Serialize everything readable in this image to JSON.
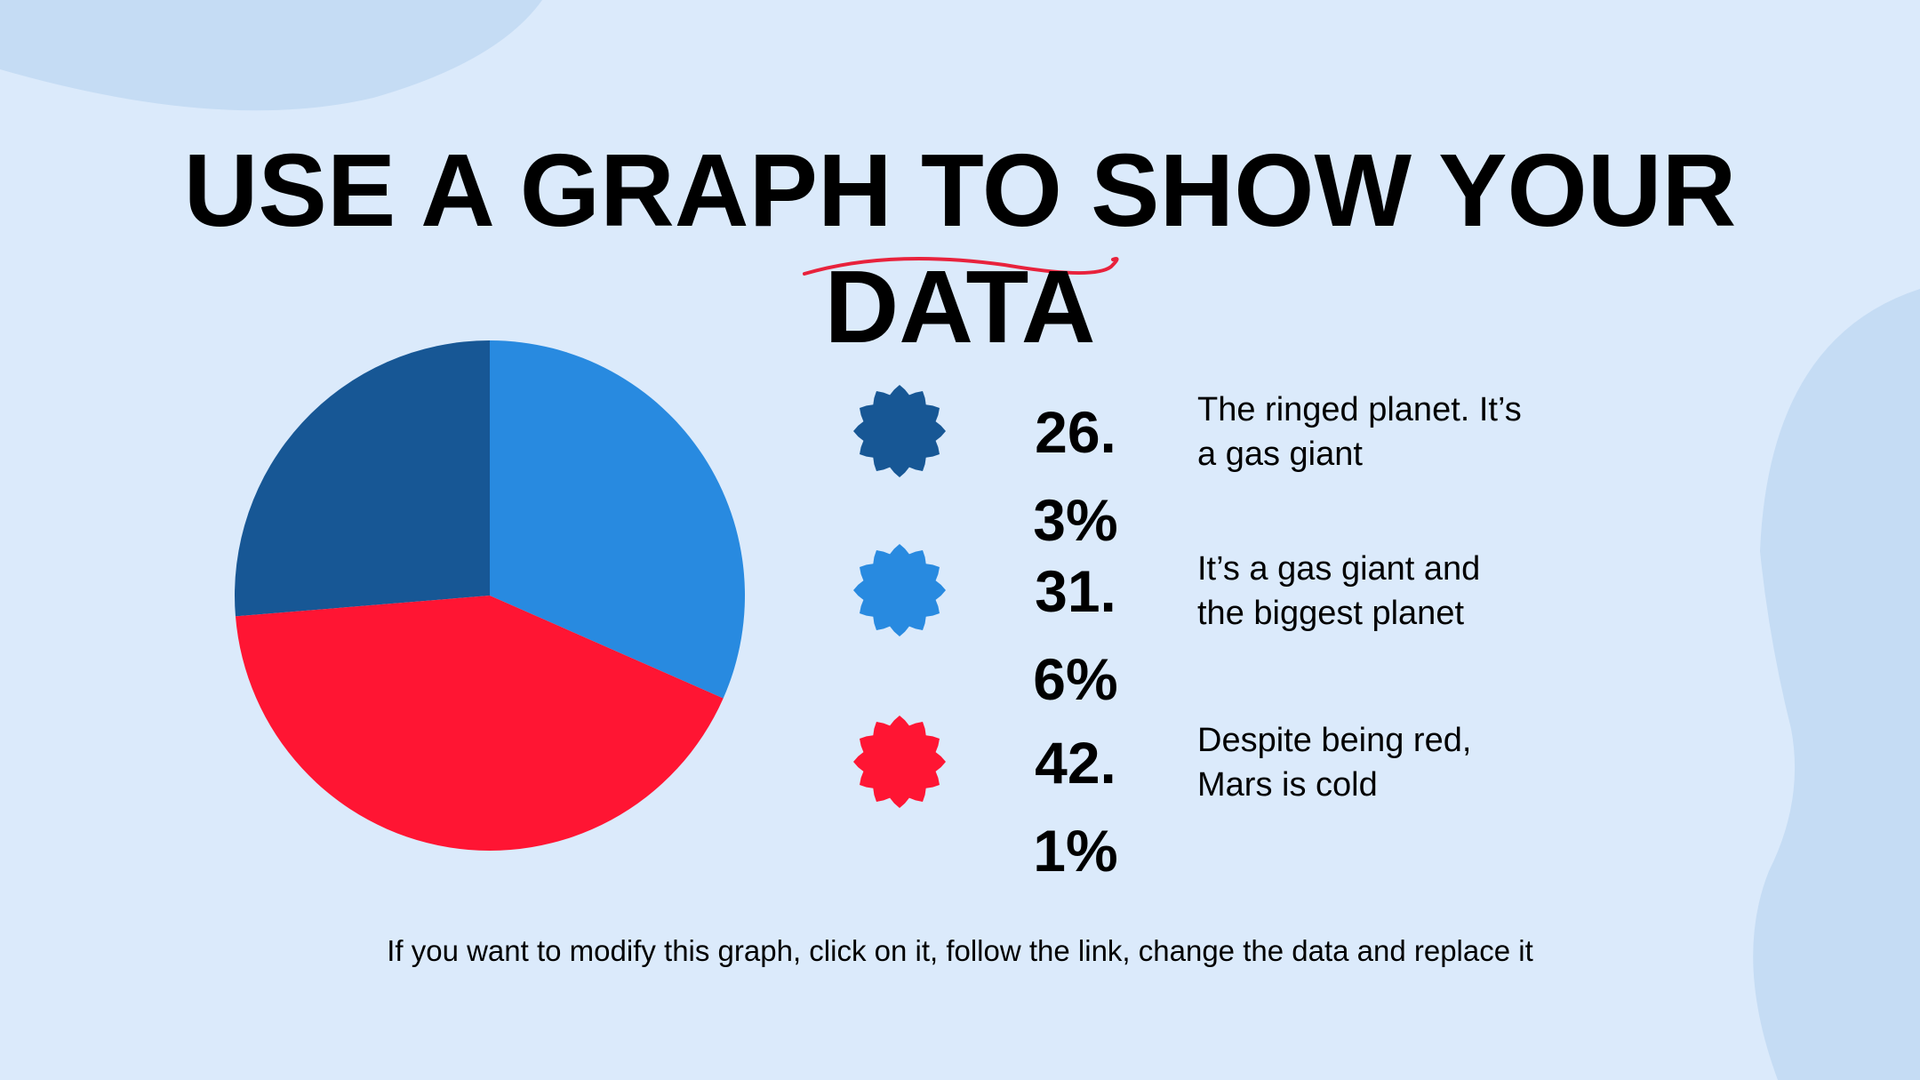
{
  "chart_data": {
    "type": "pie",
    "title": "USE A GRAPH TO SHOW YOUR DATA",
    "categories": [
      "The ringed planet. It’s a gas giant",
      "It’s a gas giant and the biggest planet",
      "Despite being red, Mars is cold"
    ],
    "values": [
      26.3,
      31.6,
      42.1
    ],
    "value_labels": [
      "26.3%",
      "31.6%",
      "42.1%"
    ],
    "colors": [
      "#175795",
      "#288ae0",
      "#ff1533"
    ],
    "footnote": "If you want to modify this graph, click on it, follow the link, change the data and replace it"
  }
}
